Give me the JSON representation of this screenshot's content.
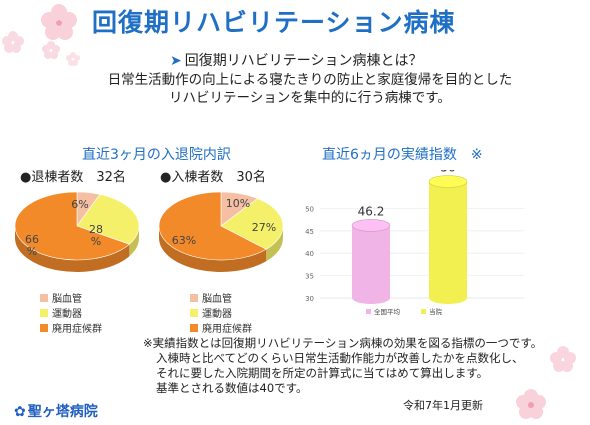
{
  "header": {
    "title": "回復期リハビリテーション病棟",
    "subtitle": "回復期リハビリテーション病棟とは？",
    "description_lines": [
      "日常生活動作の向上による寝たきりの防止と家庭復帰を目的とした",
      "リハビリテーションを集中的に行う病棟です。"
    ]
  },
  "left_section": {
    "title": "直近3ヶ月の入退院内訳",
    "discharge_label": "●退棟者数　32名",
    "admission_label": "●入棟者数　30名"
  },
  "right_section": {
    "title": "直近6ヵ月の実績指数　※"
  },
  "colors": {
    "title_blue": "#1f6fc5",
    "cerebro": "#f4bfa3",
    "motor": "#f5f06a",
    "disuse": "#f38a2a",
    "bar_pink": "#f0b4e6",
    "bar_yellow": "#f2ef50"
  },
  "chart_data": [
    {
      "type": "pie",
      "labels": [
        "脳血管",
        "運動器",
        "廃用症候群"
      ],
      "values": [
        6,
        28,
        66
      ],
      "data_labels": [
        "6%",
        "28\n%",
        "66\n%"
      ]
    },
    {
      "type": "pie",
      "labels": [
        "脳血管",
        "運動器",
        "廃用症候群"
      ],
      "values": [
        10,
        27,
        63
      ],
      "data_labels": [
        "10%",
        "27%",
        "63%"
      ]
    },
    {
      "type": "bar",
      "categories": [
        "全国平均",
        "当院"
      ],
      "values": [
        46.2,
        56
      ],
      "data_labels": [
        "46.2",
        "56"
      ],
      "ylim": [
        30,
        55
      ],
      "yticks": [
        "30",
        "35",
        "40",
        "45",
        "50"
      ]
    }
  ],
  "note": {
    "lines": [
      "※実績指数とは回復期リハビリテーション病棟の効果を図る指標の一つです。",
      "入棟時と比べてどのくらい日常生活動作能力が改善したかを点数化し、",
      "それに要した入院期間を所定の計算式に当てはめて算出します。",
      "基準とされる数値は40です。"
    ]
  },
  "footer": {
    "update_date": "令和7年1月更新",
    "hospital_logo": "✿",
    "hospital_name": "聖ヶ塔病院"
  },
  "icons": [
    "sakura-blossom-icon",
    "arrow-icon",
    "hospital-logo-icon"
  ]
}
